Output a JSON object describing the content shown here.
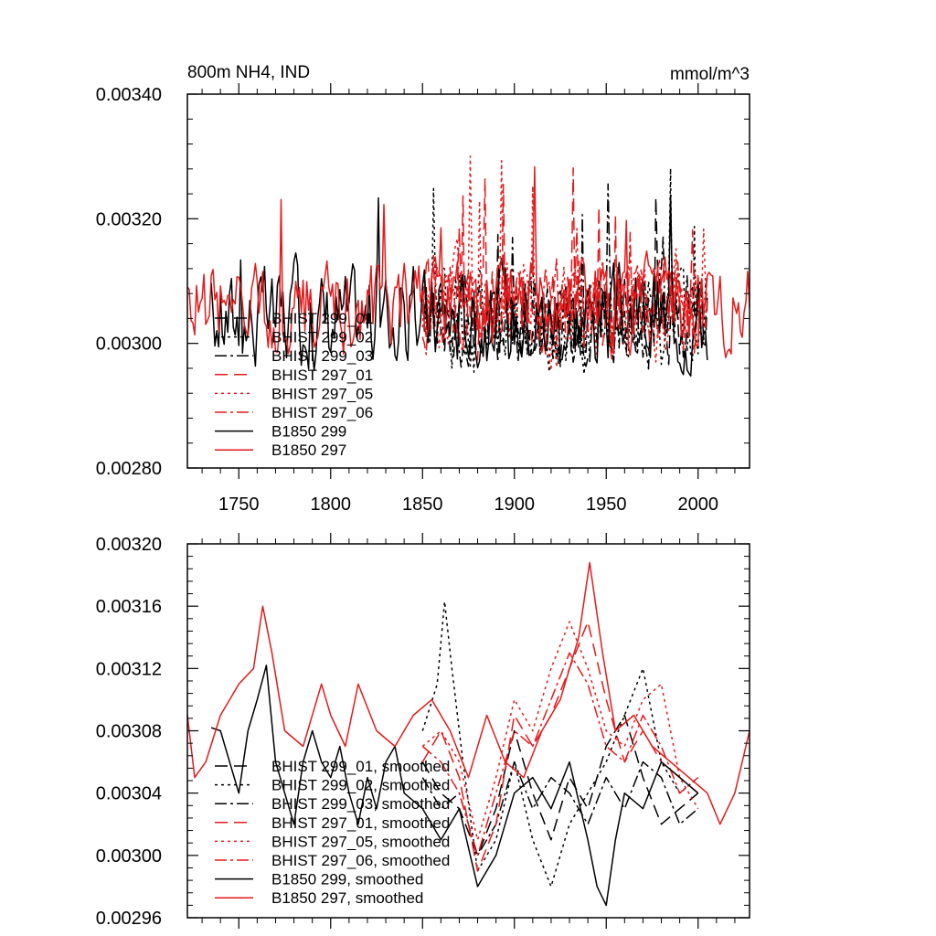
{
  "chart_data": [
    {
      "type": "line",
      "title_left": "800m NH4, IND",
      "title_right": "mmol/m^3",
      "xlim": [
        1722,
        2028
      ],
      "ylim": [
        0.0028,
        0.0034
      ],
      "yticks": [
        {
          "value": 0.0028,
          "label": "0.00280"
        },
        {
          "value": 0.003,
          "label": "0.00300"
        },
        {
          "value": 0.0032,
          "label": "0.00320"
        },
        {
          "value": 0.0034,
          "label": "0.00340"
        }
      ],
      "xticks": [
        {
          "value": 1750,
          "label": "1750"
        },
        {
          "value": 1800,
          "label": "1800"
        },
        {
          "value": 1850,
          "label": "1850"
        },
        {
          "value": 1900,
          "label": "1900"
        },
        {
          "value": 1950,
          "label": "1950"
        },
        {
          "value": 2000,
          "label": "2000"
        }
      ],
      "series": [
        {
          "name": "BHIST 299_01",
          "color": "#000000",
          "dash": "long",
          "start": 1850,
          "end": 2005,
          "mean": 0.003045,
          "amp": 7e-05,
          "seed": 11
        },
        {
          "name": "BHIST 299_02",
          "color": "#000000",
          "dash": "dot",
          "start": 1850,
          "end": 2005,
          "mean": 0.00304,
          "amp": 8e-05,
          "seed": 12
        },
        {
          "name": "BHIST 299_03",
          "color": "#000000",
          "dash": "dashdot",
          "start": 1850,
          "end": 2005,
          "mean": 0.00304,
          "amp": 7e-05,
          "seed": 13
        },
        {
          "name": "BHIST 297_01",
          "color": "#e41a1c",
          "dash": "long",
          "start": 1850,
          "end": 2005,
          "mean": 0.00306,
          "amp": 7e-05,
          "seed": 14
        },
        {
          "name": "BHIST 297_05",
          "color": "#e41a1c",
          "dash": "dot",
          "start": 1850,
          "end": 2005,
          "mean": 0.00306,
          "amp": 8e-05,
          "seed": 15
        },
        {
          "name": "BHIST 297_06",
          "color": "#e41a1c",
          "dash": "dashdot",
          "start": 1850,
          "end": 2005,
          "mean": 0.00306,
          "amp": 7e-05,
          "seed": 16
        },
        {
          "name": "B1850 299",
          "color": "#000000",
          "dash": "solid",
          "start": 1735,
          "end": 2005,
          "mean": 0.00304,
          "amp": 8e-05,
          "seed": 17
        },
        {
          "name": "B1850 297",
          "color": "#e41a1c",
          "dash": "solid",
          "start": 1722,
          "end": 2028,
          "mean": 0.00306,
          "amp": 7e-05,
          "seed": 18
        }
      ]
    },
    {
      "type": "line",
      "xlim": [
        1722,
        2028
      ],
      "ylim": [
        0.00296,
        0.0032
      ],
      "yticks": [
        {
          "value": 0.00296,
          "label": "0.00296"
        },
        {
          "value": 0.003,
          "label": "0.00300"
        },
        {
          "value": 0.00304,
          "label": "0.00304"
        },
        {
          "value": 0.00308,
          "label": "0.00308"
        },
        {
          "value": 0.00312,
          "label": "0.00312"
        },
        {
          "value": 0.00316,
          "label": "0.00316"
        },
        {
          "value": 0.0032,
          "label": "0.00320"
        }
      ],
      "xticks": [
        {
          "value": 1750,
          "label": ""
        },
        {
          "value": 1800,
          "label": ""
        },
        {
          "value": 1850,
          "label": ""
        },
        {
          "value": 1900,
          "label": ""
        },
        {
          "value": 1950,
          "label": ""
        },
        {
          "value": 2000,
          "label": ""
        }
      ],
      "series": [
        {
          "name": "BHIST 299_01, smoothed",
          "color": "#000000",
          "dash": "long",
          "points": [
            [
              1850,
              0.00306
            ],
            [
              1860,
              0.00304
            ],
            [
              1870,
              0.00303
            ],
            [
              1880,
              0.003
            ],
            [
              1890,
              0.00303
            ],
            [
              1900,
              0.00308
            ],
            [
              1910,
              0.00304
            ],
            [
              1920,
              0.00301
            ],
            [
              1930,
              0.00305
            ],
            [
              1940,
              0.00303
            ],
            [
              1950,
              0.00307
            ],
            [
              1960,
              0.00309
            ],
            [
              1970,
              0.00305
            ],
            [
              1980,
              0.00302
            ],
            [
              1990,
              0.00303
            ],
            [
              2000,
              0.00304
            ]
          ]
        },
        {
          "name": "BHIST 299_02, smoothed",
          "color": "#000000",
          "dash": "dot",
          "points": [
            [
              1850,
              0.00308
            ],
            [
              1858,
              0.00311
            ],
            [
              1862,
              0.003163
            ],
            [
              1866,
              0.00312
            ],
            [
              1872,
              0.00306
            ],
            [
              1880,
              0.00299
            ],
            [
              1890,
              0.00301
            ],
            [
              1900,
              0.00306
            ],
            [
              1910,
              0.00301
            ],
            [
              1920,
              0.00298
            ],
            [
              1930,
              0.00302
            ],
            [
              1940,
              0.00304
            ],
            [
              1950,
              0.00306
            ],
            [
              1960,
              0.00309
            ],
            [
              1970,
              0.00312
            ],
            [
              1980,
              0.00306
            ],
            [
              1990,
              0.00304
            ],
            [
              2000,
              0.00305
            ]
          ]
        },
        {
          "name": "BHIST 299_03, smoothed",
          "color": "#000000",
          "dash": "dashdot",
          "points": [
            [
              1850,
              0.00305
            ],
            [
              1860,
              0.00303
            ],
            [
              1870,
              0.00304
            ],
            [
              1880,
              0.003
            ],
            [
              1890,
              0.00302
            ],
            [
              1900,
              0.00306
            ],
            [
              1910,
              0.00303
            ],
            [
              1920,
              0.00305
            ],
            [
              1930,
              0.00304
            ],
            [
              1940,
              0.00302
            ],
            [
              1950,
              0.00305
            ],
            [
              1960,
              0.00303
            ],
            [
              1970,
              0.00306
            ],
            [
              1980,
              0.00305
            ],
            [
              1990,
              0.00302
            ],
            [
              2000,
              0.00303
            ]
          ]
        },
        {
          "name": "BHIST 297_01, smoothed",
          "color": "#e41a1c",
          "dash": "long",
          "points": [
            [
              1850,
              0.00306
            ],
            [
              1860,
              0.00308
            ],
            [
              1870,
              0.00305
            ],
            [
              1880,
              0.00299
            ],
            [
              1890,
              0.00302
            ],
            [
              1900,
              0.00309
            ],
            [
              1910,
              0.00307
            ],
            [
              1920,
              0.00309
            ],
            [
              1930,
              0.00312
            ],
            [
              1940,
              0.00315
            ],
            [
              1950,
              0.0031
            ],
            [
              1960,
              0.00306
            ],
            [
              1970,
              0.00308
            ],
            [
              1980,
              0.00306
            ],
            [
              1990,
              0.00305
            ],
            [
              2000,
              0.00304
            ]
          ]
        },
        {
          "name": "BHIST 297_05, smoothed",
          "color": "#e41a1c",
          "dash": "dot",
          "points": [
            [
              1850,
              0.00307
            ],
            [
              1860,
              0.00308
            ],
            [
              1870,
              0.00306
            ],
            [
              1880,
              0.00301
            ],
            [
              1890,
              0.00305
            ],
            [
              1900,
              0.0031
            ],
            [
              1910,
              0.00308
            ],
            [
              1920,
              0.00312
            ],
            [
              1930,
              0.00315
            ],
            [
              1940,
              0.00312
            ],
            [
              1950,
              0.00308
            ],
            [
              1960,
              0.00307
            ],
            [
              1970,
              0.0031
            ],
            [
              1980,
              0.00311
            ],
            [
              1990,
              0.00305
            ],
            [
              2000,
              0.00303
            ]
          ]
        },
        {
          "name": "BHIST 297_06, smoothed",
          "color": "#e41a1c",
          "dash": "dashdot",
          "points": [
            [
              1850,
              0.00307
            ],
            [
              1860,
              0.00306
            ],
            [
              1870,
              0.00304
            ],
            [
              1880,
              0.003
            ],
            [
              1890,
              0.00304
            ],
            [
              1900,
              0.00308
            ],
            [
              1910,
              0.00307
            ],
            [
              1920,
              0.0031
            ],
            [
              1930,
              0.00313
            ],
            [
              1940,
              0.00311
            ],
            [
              1950,
              0.00307
            ],
            [
              1960,
              0.00306
            ],
            [
              1970,
              0.00309
            ],
            [
              1980,
              0.00307
            ],
            [
              1990,
              0.00304
            ],
            [
              2000,
              0.00305
            ]
          ]
        },
        {
          "name": "B1850 299, smoothed",
          "color": "#000000",
          "dash": "solid",
          "points": [
            [
              1735,
              0.003082
            ],
            [
              1740,
              0.00308
            ],
            [
              1745,
              0.00306
            ],
            [
              1750,
              0.00304
            ],
            [
              1755,
              0.00308
            ],
            [
              1760,
              0.0031
            ],
            [
              1765,
              0.003122
            ],
            [
              1770,
              0.00306
            ],
            [
              1775,
              0.00304
            ],
            [
              1780,
              0.00302
            ],
            [
              1785,
              0.00306
            ],
            [
              1790,
              0.00308
            ],
            [
              1795,
              0.00306
            ],
            [
              1800,
              0.00305
            ],
            [
              1805,
              0.00307
            ],
            [
              1810,
              0.00304
            ],
            [
              1815,
              0.00302
            ],
            [
              1820,
              0.00305
            ],
            [
              1825,
              0.00303
            ],
            [
              1830,
              0.00306
            ],
            [
              1835,
              0.00307
            ],
            [
              1840,
              0.00304
            ],
            [
              1850,
              0.00303
            ],
            [
              1860,
              0.00301
            ],
            [
              1870,
              0.00303
            ],
            [
              1880,
              0.00298
            ],
            [
              1890,
              0.003
            ],
            [
              1900,
              0.00304
            ],
            [
              1910,
              0.00305
            ],
            [
              1920,
              0.00303
            ],
            [
              1930,
              0.00306
            ],
            [
              1940,
              0.00301
            ],
            [
              1945,
              0.00298
            ],
            [
              1950,
              0.002968
            ],
            [
              1955,
              0.00301
            ],
            [
              1960,
              0.00304
            ],
            [
              1970,
              0.00303
            ],
            [
              1980,
              0.00306
            ],
            [
              1990,
              0.00305
            ],
            [
              2000,
              0.00304
            ]
          ]
        },
        {
          "name": "B1850 297, smoothed",
          "color": "#e41a1c",
          "dash": "solid",
          "points": [
            [
              1722,
              0.00309
            ],
            [
              1726,
              0.00305
            ],
            [
              1732,
              0.00306
            ],
            [
              1740,
              0.00309
            ],
            [
              1750,
              0.00311
            ],
            [
              1758,
              0.00312
            ],
            [
              1763,
              0.00316
            ],
            [
              1768,
              0.00313
            ],
            [
              1775,
              0.00308
            ],
            [
              1785,
              0.00307
            ],
            [
              1795,
              0.00311
            ],
            [
              1800,
              0.00309
            ],
            [
              1808,
              0.00307
            ],
            [
              1815,
              0.00311
            ],
            [
              1825,
              0.00308
            ],
            [
              1835,
              0.00307
            ],
            [
              1845,
              0.00309
            ],
            [
              1855,
              0.0031
            ],
            [
              1865,
              0.00308
            ],
            [
              1875,
              0.00305
            ],
            [
              1885,
              0.00309
            ],
            [
              1895,
              0.00306
            ],
            [
              1905,
              0.00305
            ],
            [
              1915,
              0.00308
            ],
            [
              1925,
              0.0031
            ],
            [
              1935,
              0.00314
            ],
            [
              1941,
              0.003188
            ],
            [
              1948,
              0.00313
            ],
            [
              1955,
              0.00308
            ],
            [
              1965,
              0.00309
            ],
            [
              1975,
              0.00307
            ],
            [
              1985,
              0.00306
            ],
            [
              1995,
              0.00305
            ],
            [
              2005,
              0.00304
            ],
            [
              2012,
              0.00302
            ],
            [
              2020,
              0.00304
            ],
            [
              2028,
              0.00308
            ]
          ]
        }
      ]
    }
  ]
}
